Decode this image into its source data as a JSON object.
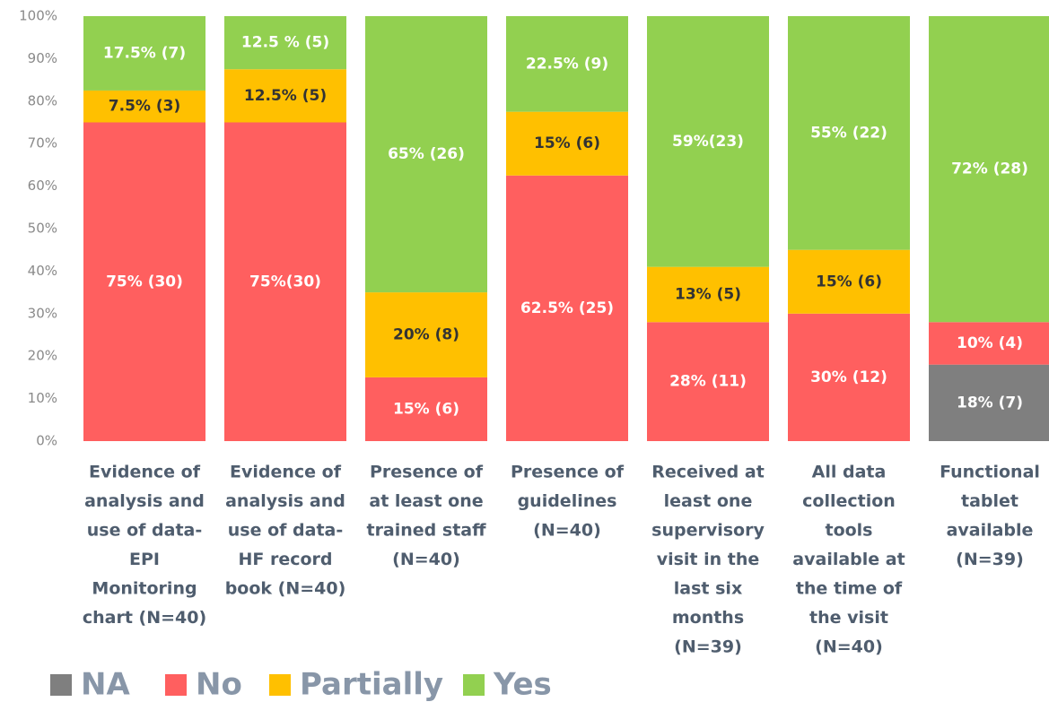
{
  "chart_data": {
    "type": "stacked_bar",
    "categories": [
      [
        "Evidence of",
        "analysis and",
        "use of data-",
        "EPI",
        "Monitoring",
        "chart (N=40)"
      ],
      [
        "Evidence of",
        "analysis and",
        "use of data-",
        "HF record",
        "book (N=40)"
      ],
      [
        "Presence of",
        "at least one",
        "trained staff",
        "(N=40)"
      ],
      [
        "Presence of",
        "guidelines",
        "(N=40)"
      ],
      [
        "Received at",
        "least one",
        "supervisory",
        "visit in the",
        "last six",
        "months",
        "(N=39)"
      ],
      [
        "All data",
        "collection",
        "tools",
        "available at",
        "the time of",
        "the visit",
        "(N=40)"
      ],
      [
        "Functional",
        "tablet",
        "available",
        "(N=39)"
      ]
    ],
    "series": [
      {
        "name": "NA",
        "color": "#7f7f7f",
        "label_color": "#ffffff",
        "values": [
          null,
          null,
          null,
          null,
          null,
          null,
          18
        ],
        "value_labels": [
          null,
          null,
          null,
          null,
          null,
          null,
          "18% (7)"
        ]
      },
      {
        "name": "No",
        "color": "#ff5f5f",
        "label_color": "#ffffff",
        "values": [
          75,
          75,
          15,
          62.5,
          28,
          30,
          10
        ],
        "value_labels": [
          "75% (30)",
          "75%(30)",
          "15% (6)",
          "62.5% (25)",
          "28% (11)",
          "30% (12)",
          "10% (4)"
        ]
      },
      {
        "name": "Partially",
        "color": "#ffc000",
        "label_color": "#333333",
        "values": [
          7.5,
          12.5,
          20,
          15,
          13,
          15,
          null
        ],
        "value_labels": [
          "7.5% (3)",
          "12.5% (5)",
          "20% (8)",
          "15% (6)",
          "13% (5)",
          "15% (6)",
          null
        ]
      },
      {
        "name": "Yes",
        "color": "#92d050",
        "label_color": "#ffffff",
        "values": [
          17.5,
          12.5,
          65,
          22.5,
          59,
          55,
          72
        ],
        "value_labels": [
          "17.5% (7)",
          "12.5 % (5)",
          "65% (26)",
          "22.5% (9)",
          "59%(23)",
          "55% (22)",
          "72% (28)"
        ]
      }
    ],
    "ylim": [
      0,
      100
    ],
    "yticks": [
      {
        "value": 0,
        "label": "0%"
      },
      {
        "value": 10,
        "label": "10%"
      },
      {
        "value": 20,
        "label": "20%"
      },
      {
        "value": 30,
        "label": "30%"
      },
      {
        "value": 40,
        "label": "40%"
      },
      {
        "value": 50,
        "label": "50%"
      },
      {
        "value": 60,
        "label": "60%"
      },
      {
        "value": 70,
        "label": "70%"
      },
      {
        "value": 80,
        "label": "80%"
      },
      {
        "value": 90,
        "label": "90%"
      },
      {
        "value": 100,
        "label": "100%"
      }
    ],
    "legend": "bottom-left"
  }
}
